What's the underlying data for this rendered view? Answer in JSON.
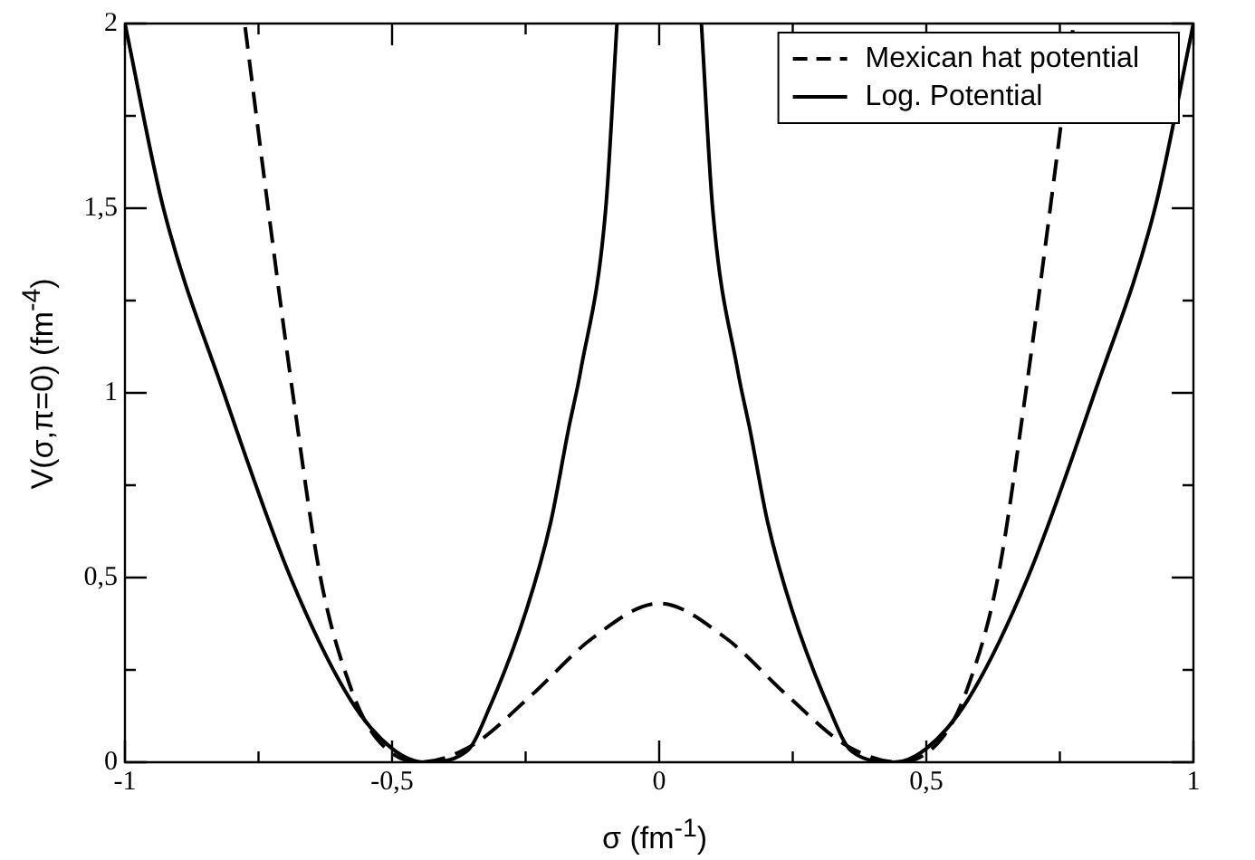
{
  "chart_data": {
    "type": "line",
    "xlabel": "σ (fm$^{-1}$)",
    "ylabel": "V(σ,π=0) (fm$^{-4}$)",
    "xlim": [
      -1,
      1
    ],
    "ylim": [
      0,
      2
    ],
    "xticks": [
      -1,
      {
        "value": -0.75,
        "label": null
      },
      {
        "value": -0.5,
        "label": "-0,5"
      },
      {
        "value": -0.25,
        "label": null
      },
      0,
      {
        "value": 0.25,
        "label": null
      },
      {
        "value": 0.5,
        "label": "0,5"
      },
      {
        "value": 0.75,
        "label": null
      },
      1
    ],
    "yticks": [
      0,
      {
        "value": 0.25,
        "label": null
      },
      {
        "value": 0.5,
        "label": "0,5"
      },
      {
        "value": 0.75,
        "label": null
      },
      1,
      {
        "value": 1.25,
        "label": null
      },
      {
        "value": 1.5,
        "label": "1,5"
      },
      {
        "value": 1.75,
        "label": null
      },
      2
    ],
    "grid": false,
    "legend": "top right",
    "marker": "none",
    "series": [
      {
        "name": "Mexican hat potential",
        "color": "#000000",
        "line_style": "dashed",
        "x": [
          -0.775,
          -0.732,
          -0.686,
          -0.634,
          -0.577,
          -0.532,
          -0.45,
          -0.351,
          -0.238,
          -0.124,
          0,
          0.124,
          0.238,
          0.351,
          0.45,
          0.532,
          0.577,
          0.634,
          0.686,
          0.732,
          0.775
        ],
        "values": [
          1.99,
          1.5,
          1.0,
          0.5,
          0.2,
          0.07,
          0,
          0.045,
          0.183,
          0.337,
          0.43,
          0.337,
          0.183,
          0.045,
          0,
          0.07,
          0.2,
          0.5,
          1.0,
          1.5,
          1.99
        ]
      },
      {
        "name": "Log. Potential",
        "color": "#000000",
        "line_style": "solid",
        "x": [
          -1,
          -0.928,
          -0.815,
          -0.69,
          -0.577,
          -0.5,
          -0.44,
          -0.36,
          -0.317,
          -0.249,
          -0.203,
          -0.17,
          -0.147,
          -0.1,
          -0.079,
          0,
          0.079,
          0.1,
          0.147,
          0.17,
          0.203,
          0.249,
          0.317,
          0.36,
          0.44,
          0.5,
          0.577,
          0.69,
          0.815,
          0.928,
          1
        ],
        "values": [
          2.0,
          1.5,
          1.0,
          0.5,
          0.167,
          0.037,
          0,
          0.03,
          0.15,
          0.41,
          0.65,
          0.9,
          1.06,
          1.5,
          2.0,
          null,
          2.0,
          1.5,
          1.06,
          0.9,
          0.65,
          0.41,
          0.15,
          0.03,
          0,
          0.037,
          0.167,
          0.5,
          1.0,
          1.5,
          2.0
        ]
      }
    ]
  }
}
